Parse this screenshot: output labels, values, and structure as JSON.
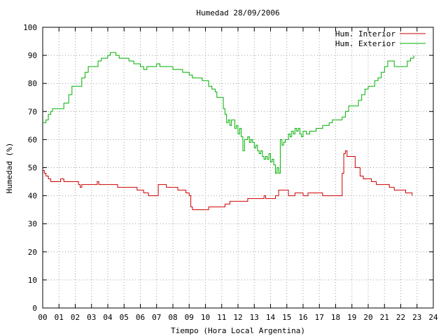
{
  "chart_data": {
    "type": "line",
    "title": "Humedad 28/09/2006",
    "xlabel": "Tiempo (Hora Local Argentina)",
    "ylabel": "Humedad (%)",
    "xlim": [
      0,
      24
    ],
    "ylim": [
      0,
      100
    ],
    "x_ticks": [
      "00",
      "01",
      "02",
      "03",
      "04",
      "05",
      "06",
      "07",
      "08",
      "09",
      "10",
      "11",
      "12",
      "13",
      "14",
      "15",
      "16",
      "17",
      "18",
      "19",
      "20",
      "21",
      "22",
      "23",
      "24"
    ],
    "y_ticks": [
      "0",
      "10",
      "20",
      "30",
      "40",
      "50",
      "60",
      "70",
      "80",
      "90",
      "100"
    ],
    "grid": true,
    "legend_position": "top-right",
    "series": [
      {
        "name": "Hum. Interior",
        "color": "#cc0000",
        "points": [
          [
            0.0,
            49
          ],
          [
            0.1,
            48
          ],
          [
            0.2,
            47
          ],
          [
            0.35,
            46
          ],
          [
            0.5,
            45
          ],
          [
            0.9,
            45
          ],
          [
            1.1,
            46
          ],
          [
            1.3,
            45
          ],
          [
            2.0,
            45
          ],
          [
            2.2,
            44
          ],
          [
            2.3,
            43
          ],
          [
            2.4,
            44
          ],
          [
            3.3,
            44
          ],
          [
            3.35,
            45
          ],
          [
            3.45,
            44
          ],
          [
            4.5,
            44
          ],
          [
            4.6,
            43
          ],
          [
            5.5,
            43
          ],
          [
            5.8,
            42
          ],
          [
            6.2,
            41
          ],
          [
            6.5,
            40
          ],
          [
            7.0,
            40
          ],
          [
            7.1,
            44
          ],
          [
            7.5,
            44
          ],
          [
            7.6,
            43
          ],
          [
            8.2,
            43
          ],
          [
            8.3,
            42
          ],
          [
            8.8,
            41
          ],
          [
            9.0,
            40
          ],
          [
            9.1,
            36
          ],
          [
            9.2,
            35
          ],
          [
            9.5,
            35
          ],
          [
            10.0,
            35
          ],
          [
            10.2,
            36
          ],
          [
            11.0,
            36
          ],
          [
            11.2,
            37
          ],
          [
            11.5,
            38
          ],
          [
            12.0,
            38
          ],
          [
            12.5,
            38
          ],
          [
            12.6,
            39
          ],
          [
            13.5,
            39
          ],
          [
            13.6,
            40
          ],
          [
            13.7,
            39
          ],
          [
            14.0,
            39
          ],
          [
            14.3,
            40
          ],
          [
            14.5,
            42
          ],
          [
            15.0,
            42
          ],
          [
            15.1,
            40
          ],
          [
            15.5,
            41
          ],
          [
            16.0,
            40
          ],
          [
            16.3,
            41
          ],
          [
            17.0,
            41
          ],
          [
            17.2,
            40
          ],
          [
            18.0,
            40
          ],
          [
            18.3,
            40
          ],
          [
            18.4,
            48
          ],
          [
            18.5,
            55
          ],
          [
            18.6,
            56
          ],
          [
            18.7,
            54
          ],
          [
            19.0,
            54
          ],
          [
            19.2,
            50
          ],
          [
            19.5,
            47
          ],
          [
            19.7,
            46
          ],
          [
            20.0,
            46
          ],
          [
            20.2,
            45
          ],
          [
            20.5,
            44
          ],
          [
            21.0,
            44
          ],
          [
            21.3,
            43
          ],
          [
            21.6,
            42
          ],
          [
            22.0,
            42
          ],
          [
            22.3,
            41
          ],
          [
            22.5,
            41
          ],
          [
            22.7,
            40
          ]
        ]
      },
      {
        "name": "Hum. Exterior",
        "color": "#00b000",
        "points": [
          [
            0.0,
            66
          ],
          [
            0.2,
            67
          ],
          [
            0.35,
            69
          ],
          [
            0.5,
            70
          ],
          [
            0.6,
            71
          ],
          [
            1.0,
            71
          ],
          [
            1.3,
            73
          ],
          [
            1.6,
            76
          ],
          [
            1.8,
            79
          ],
          [
            2.0,
            79
          ],
          [
            2.2,
            79
          ],
          [
            2.4,
            82
          ],
          [
            2.6,
            84
          ],
          [
            2.8,
            86
          ],
          [
            3.0,
            86
          ],
          [
            3.2,
            86
          ],
          [
            3.4,
            88
          ],
          [
            3.6,
            89
          ],
          [
            3.8,
            89
          ],
          [
            4.0,
            90
          ],
          [
            4.15,
            91
          ],
          [
            4.3,
            91
          ],
          [
            4.5,
            90
          ],
          [
            4.7,
            89
          ],
          [
            5.0,
            89
          ],
          [
            5.3,
            88
          ],
          [
            5.6,
            87
          ],
          [
            5.8,
            87
          ],
          [
            6.0,
            86
          ],
          [
            6.2,
            85
          ],
          [
            6.4,
            86
          ],
          [
            6.6,
            86
          ],
          [
            6.8,
            86
          ],
          [
            7.0,
            87
          ],
          [
            7.2,
            86
          ],
          [
            7.5,
            86
          ],
          [
            7.8,
            86
          ],
          [
            8.0,
            85
          ],
          [
            8.3,
            85
          ],
          [
            8.6,
            84
          ],
          [
            8.8,
            84
          ],
          [
            9.0,
            83
          ],
          [
            9.2,
            82
          ],
          [
            9.5,
            82
          ],
          [
            9.8,
            81
          ],
          [
            10.0,
            81
          ],
          [
            10.2,
            79
          ],
          [
            10.4,
            78
          ],
          [
            10.6,
            77
          ],
          [
            10.7,
            75
          ],
          [
            10.9,
            75
          ],
          [
            11.0,
            75
          ],
          [
            11.1,
            71
          ],
          [
            11.2,
            69
          ],
          [
            11.3,
            66
          ],
          [
            11.4,
            67
          ],
          [
            11.5,
            65
          ],
          [
            11.6,
            67
          ],
          [
            11.7,
            67
          ],
          [
            11.8,
            64
          ],
          [
            11.9,
            65
          ],
          [
            12.0,
            62
          ],
          [
            12.1,
            64
          ],
          [
            12.2,
            61
          ],
          [
            12.3,
            56
          ],
          [
            12.4,
            60
          ],
          [
            12.5,
            60
          ],
          [
            12.6,
            61
          ],
          [
            12.7,
            59
          ],
          [
            12.8,
            60
          ],
          [
            12.9,
            59
          ],
          [
            13.0,
            57
          ],
          [
            13.1,
            58
          ],
          [
            13.2,
            56
          ],
          [
            13.3,
            55
          ],
          [
            13.4,
            56
          ],
          [
            13.5,
            54
          ],
          [
            13.6,
            53
          ],
          [
            13.7,
            54
          ],
          [
            13.8,
            53
          ],
          [
            13.9,
            55
          ],
          [
            14.0,
            52
          ],
          [
            14.1,
            53
          ],
          [
            14.2,
            51
          ],
          [
            14.3,
            48
          ],
          [
            14.4,
            50
          ],
          [
            14.5,
            48
          ],
          [
            14.6,
            60
          ],
          [
            14.7,
            58
          ],
          [
            14.8,
            59
          ],
          [
            14.9,
            60
          ],
          [
            15.0,
            60
          ],
          [
            15.1,
            62
          ],
          [
            15.2,
            61
          ],
          [
            15.3,
            63
          ],
          [
            15.4,
            62
          ],
          [
            15.5,
            64
          ],
          [
            15.6,
            63
          ],
          [
            15.7,
            64
          ],
          [
            15.8,
            62
          ],
          [
            15.9,
            61
          ],
          [
            16.0,
            63
          ],
          [
            16.2,
            62
          ],
          [
            16.4,
            63
          ],
          [
            16.6,
            63
          ],
          [
            16.8,
            64
          ],
          [
            17.0,
            64
          ],
          [
            17.2,
            65
          ],
          [
            17.4,
            65
          ],
          [
            17.6,
            66
          ],
          [
            17.8,
            67
          ],
          [
            18.0,
            67
          ],
          [
            18.2,
            67
          ],
          [
            18.4,
            68
          ],
          [
            18.6,
            70
          ],
          [
            18.8,
            72
          ],
          [
            19.0,
            72
          ],
          [
            19.2,
            72
          ],
          [
            19.4,
            74
          ],
          [
            19.6,
            76
          ],
          [
            19.8,
            78
          ],
          [
            20.0,
            79
          ],
          [
            20.2,
            79
          ],
          [
            20.4,
            81
          ],
          [
            20.6,
            82
          ],
          [
            20.8,
            84
          ],
          [
            21.0,
            86
          ],
          [
            21.2,
            88
          ],
          [
            21.4,
            88
          ],
          [
            21.6,
            86
          ],
          [
            21.8,
            86
          ],
          [
            22.0,
            86
          ],
          [
            22.2,
            86
          ],
          [
            22.4,
            88
          ],
          [
            22.6,
            89
          ],
          [
            22.8,
            90
          ]
        ]
      }
    ]
  }
}
